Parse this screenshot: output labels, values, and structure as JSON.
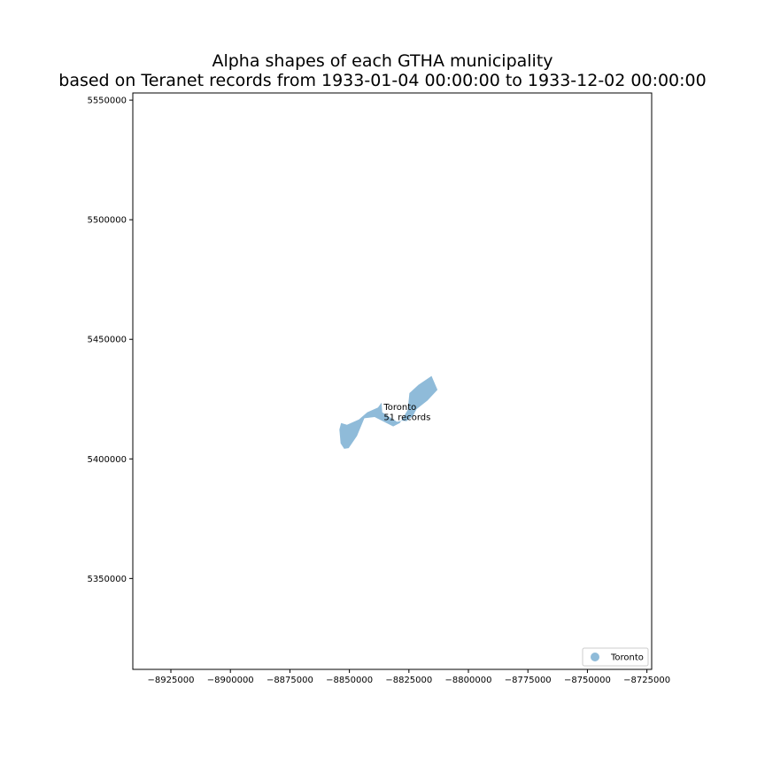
{
  "chart_data": {
    "type": "map",
    "title_line1": "Alpha shapes of each GTHA municipality",
    "title_line2": "based on Teranet records from 1933-01-04 00:00:00 to 1933-12-02 00:00:00",
    "xlabel": "",
    "ylabel": "",
    "xlim": [
      -8941000,
      -8723000
    ],
    "ylim": [
      5312000,
      5553000
    ],
    "x_ticks": [
      -8925000,
      -8900000,
      -8875000,
      -8850000,
      -8825000,
      -8800000,
      -8775000,
      -8750000,
      -8725000
    ],
    "x_tick_labels": [
      "−8925000",
      "−8900000",
      "−8875000",
      "−8850000",
      "−8825000",
      "−8800000",
      "−8775000",
      "−8750000",
      "−8725000"
    ],
    "y_ticks": [
      5350000,
      5400000,
      5450000,
      5500000,
      5550000
    ],
    "y_tick_labels": [
      "5350000",
      "5400000",
      "5450000",
      "5500000",
      "5550000"
    ],
    "grid": false,
    "legend_position": "lower-right",
    "series": [
      {
        "name": "Toronto",
        "color": "#1f77b4",
        "alpha": 0.5,
        "annotation_lines": [
          "Toronto",
          "51 records"
        ],
        "annotation_at": [
          -8835600,
          5420500
        ],
        "polygon": [
          [
            -8853500,
            5415000
          ],
          [
            -8851000,
            5414300
          ],
          [
            -8846000,
            5416500
          ],
          [
            -8842500,
            5419500
          ],
          [
            -8838000,
            5421500
          ],
          [
            -8836500,
            5423500
          ],
          [
            -8836200,
            5419500
          ],
          [
            -8830000,
            5415500
          ],
          [
            -8828000,
            5416000
          ],
          [
            -8826000,
            5415800
          ],
          [
            -8823300,
            5418000
          ],
          [
            -8821800,
            5420800
          ],
          [
            -8817200,
            5424400
          ],
          [
            -8813000,
            5428900
          ],
          [
            -8815500,
            5434700
          ],
          [
            -8821000,
            5431000
          ],
          [
            -8824800,
            5427500
          ],
          [
            -8825500,
            5420500
          ],
          [
            -8828800,
            5415000
          ],
          [
            -8831600,
            5413600
          ],
          [
            -8839400,
            5417500
          ],
          [
            -8843700,
            5417000
          ],
          [
            -8846800,
            5409600
          ],
          [
            -8850300,
            5404500
          ],
          [
            -8852200,
            5404200
          ],
          [
            -8853700,
            5406500
          ],
          [
            -8854200,
            5412300
          ]
        ]
      }
    ]
  }
}
